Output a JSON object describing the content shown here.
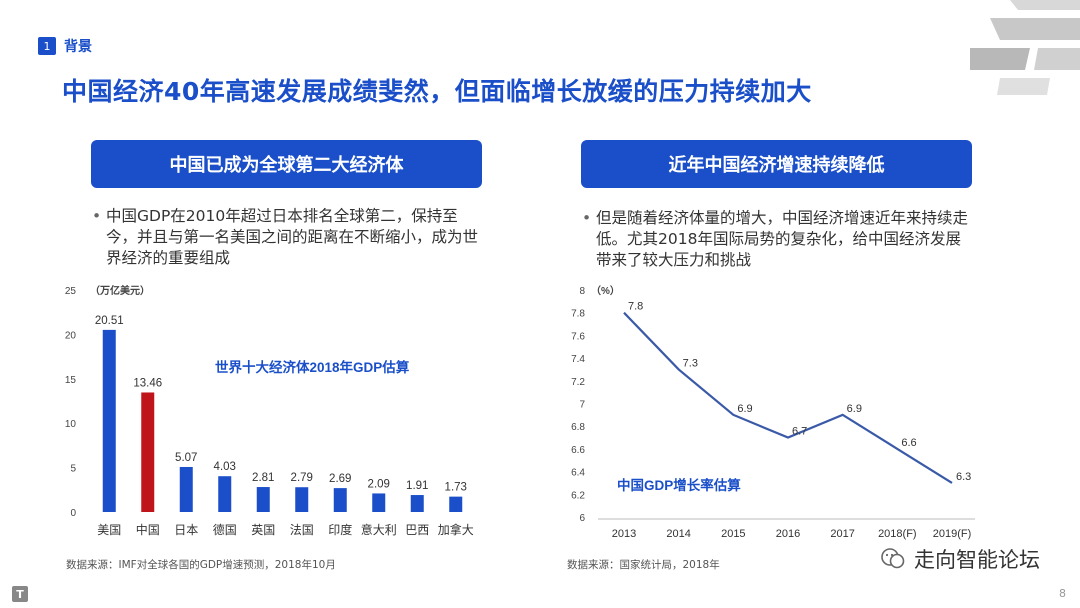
{
  "section": {
    "number": "1",
    "label": "背景"
  },
  "title": "中国经济40年高速发展成绩斐然，但面临增长放缓的压力持续加大",
  "left_panel": {
    "header": "中国已成为全球第二大经济体",
    "bullet": "中国GDP在2010年超过日本排名全球第二，保持至今，并且与第一名美国之间的距离在不断缩小，成为世界经济的重要组成",
    "source": "数据来源：IMF对全球各国的GDP增速预测，2018年10月"
  },
  "right_panel": {
    "header": "近年中国经济增速持续降低",
    "bullet": "但是随着经济体量的增大，中国经济增速近年来持续走低。尤其2018年国际局势的复杂化，给中国经济发展带来了较大压力和挑战",
    "source": "数据来源：国家统计局，2018年"
  },
  "watermark": "走向智能论坛",
  "page_number": "8",
  "footer_logo": "T",
  "colors": {
    "accent": "#1a4fc9",
    "bar_default": "#1a4fc9",
    "bar_highlight": "#c0141b"
  },
  "chart_data": [
    {
      "type": "bar",
      "title": "世界十大经济体2018年GDP估算",
      "ylabel": "（万亿美元）",
      "ylim": [
        0,
        25
      ],
      "yticks": [
        "0",
        "5",
        "10",
        "15",
        "20",
        "25"
      ],
      "categories": [
        "美国",
        "中国",
        "日本",
        "德国",
        "英国",
        "法国",
        "印度",
        "意大利",
        "巴西",
        "加拿大"
      ],
      "values": [
        20.51,
        13.46,
        5.07,
        4.03,
        2.81,
        2.79,
        2.69,
        2.09,
        1.91,
        1.73
      ],
      "labels": [
        "20.51",
        "13.46",
        "5.07",
        "4.03",
        "2.81",
        "2.79",
        "2.69",
        "2.09",
        "1.91",
        "1.73"
      ],
      "highlight_index": 1,
      "grid": false
    },
    {
      "type": "line",
      "title": "中国GDP增长率估算",
      "ylabel": "（%）",
      "ylim": [
        6,
        8
      ],
      "yticks": [
        "6",
        "6.2",
        "6.4",
        "6.6",
        "6.8",
        "7",
        "7.2",
        "7.4",
        "7.6",
        "7.8",
        "8"
      ],
      "x": [
        "2013",
        "2014",
        "2015",
        "2016",
        "2017",
        "2018(F)",
        "2019(F)"
      ],
      "values": [
        7.8,
        7.3,
        6.9,
        6.7,
        6.9,
        6.6,
        6.3
      ],
      "labels": [
        "7.8",
        "7.3",
        "6.9",
        "6.7",
        "6.9",
        "6.6",
        "6.3"
      ],
      "grid": false
    }
  ]
}
